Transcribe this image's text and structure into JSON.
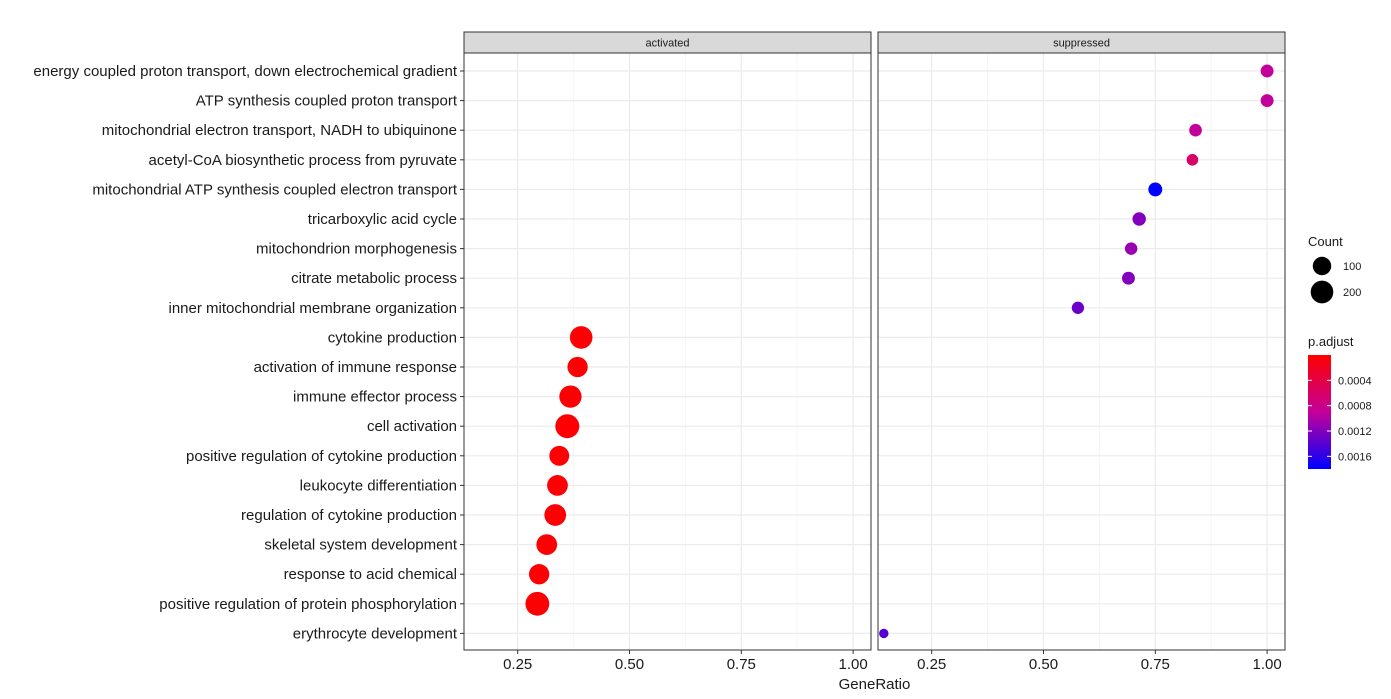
{
  "chart_data": {
    "type": "scatter",
    "xlabel": "GeneRatio",
    "xlim": [
      0.13,
      1.04
    ],
    "xticks": [
      0.25,
      0.5,
      0.75,
      1.0
    ],
    "xtick_labels": [
      "0.25",
      "0.50",
      "0.75",
      "1.00"
    ],
    "grid": true,
    "facets": [
      "activated",
      "suppressed"
    ],
    "terms": [
      "energy coupled proton transport, down electrochemical gradient",
      "ATP synthesis coupled proton transport",
      "mitochondrial electron transport, NADH to ubiquinone",
      "acetyl-CoA biosynthetic process from pyruvate",
      "mitochondrial ATP synthesis coupled electron transport",
      "tricarboxylic acid cycle",
      "mitochondrion morphogenesis",
      "citrate metabolic process",
      "inner mitochondrial membrane organization",
      "cytokine production",
      "activation of immune response",
      "immune effector process",
      "cell activation",
      "positive regulation of cytokine production",
      "leukocyte differentiation",
      "regulation of cytokine production",
      "skeletal system development",
      "response to acid chemical",
      "positive regulation of protein phosphorylation",
      "erythrocyte development"
    ],
    "points": [
      {
        "facet": "activated",
        "term": "cytokine production",
        "gene_ratio": 0.392,
        "count": 200,
        "p_adjust": 2e-05
      },
      {
        "facet": "activated",
        "term": "activation of immune response",
        "gene_ratio": 0.384,
        "count": 140,
        "p_adjust": 2e-05
      },
      {
        "facet": "activated",
        "term": "immune effector process",
        "gene_ratio": 0.368,
        "count": 190,
        "p_adjust": 2e-05
      },
      {
        "facet": "activated",
        "term": "cell activation",
        "gene_ratio": 0.361,
        "count": 240,
        "p_adjust": 2e-05
      },
      {
        "facet": "activated",
        "term": "positive regulation of cytokine production",
        "gene_ratio": 0.343,
        "count": 130,
        "p_adjust": 2e-05
      },
      {
        "facet": "activated",
        "term": "leukocyte differentiation",
        "gene_ratio": 0.339,
        "count": 150,
        "p_adjust": 2e-05
      },
      {
        "facet": "activated",
        "term": "regulation of cytokine production",
        "gene_ratio": 0.334,
        "count": 175,
        "p_adjust": 2e-05
      },
      {
        "facet": "activated",
        "term": "skeletal system development",
        "gene_ratio": 0.315,
        "count": 150,
        "p_adjust": 2e-05
      },
      {
        "facet": "activated",
        "term": "response to acid chemical",
        "gene_ratio": 0.298,
        "count": 140,
        "p_adjust": 2e-05
      },
      {
        "facet": "activated",
        "term": "positive regulation of protein phosphorylation",
        "gene_ratio": 0.294,
        "count": 235,
        "p_adjust": 2e-05
      },
      {
        "facet": "suppressed",
        "term": "energy coupled proton transport, down electrochemical gradient",
        "gene_ratio": 1.0,
        "count": 20,
        "p_adjust": 0.0009
      },
      {
        "facet": "suppressed",
        "term": "ATP synthesis coupled proton transport",
        "gene_ratio": 1.0,
        "count": 20,
        "p_adjust": 0.0009
      },
      {
        "facet": "suppressed",
        "term": "mitochondrial electron transport, NADH to ubiquinone",
        "gene_ratio": 0.84,
        "count": 18,
        "p_adjust": 0.0009
      },
      {
        "facet": "suppressed",
        "term": "acetyl-CoA biosynthetic process from pyruvate",
        "gene_ratio": 0.833,
        "count": 10,
        "p_adjust": 0.0006
      },
      {
        "facet": "suppressed",
        "term": "mitochondrial ATP synthesis coupled electron transport",
        "gene_ratio": 0.75,
        "count": 30,
        "p_adjust": 0.0018
      },
      {
        "facet": "suppressed",
        "term": "tricarboxylic acid cycle",
        "gene_ratio": 0.714,
        "count": 25,
        "p_adjust": 0.0012
      },
      {
        "facet": "suppressed",
        "term": "mitochondrion morphogenesis",
        "gene_ratio": 0.696,
        "count": 16,
        "p_adjust": 0.0011
      },
      {
        "facet": "suppressed",
        "term": "citrate metabolic process",
        "gene_ratio": 0.69,
        "count": 20,
        "p_adjust": 0.0012
      },
      {
        "facet": "suppressed",
        "term": "inner mitochondrial membrane organization",
        "gene_ratio": 0.577,
        "count": 15,
        "p_adjust": 0.0013
      },
      {
        "facet": "suppressed",
        "term": "erythrocyte development",
        "gene_ratio": 0.143,
        "count": 1,
        "p_adjust": 0.0014
      }
    ],
    "size_legend": {
      "title": "Count",
      "entries": [
        {
          "label": "100",
          "value": 100
        },
        {
          "label": "200",
          "value": 200
        }
      ]
    },
    "color_legend": {
      "title": "p.adjust",
      "range": [
        0.0,
        0.0018
      ],
      "low_color": "#ff0000",
      "high_color": "#0000ff",
      "ticks": [
        {
          "label": "0.0004",
          "value": 0.0004
        },
        {
          "label": "0.0008",
          "value": 0.0008
        },
        {
          "label": "0.0012",
          "value": 0.0012
        },
        {
          "label": "0.0016",
          "value": 0.0016
        }
      ]
    },
    "legend_position": "right",
    "colors": {
      "strip_fill": "#d9d9d9",
      "panel_border": "#333333",
      "grid_major": "#ebebeb",
      "grid_minor": "#f5f5f5"
    }
  }
}
